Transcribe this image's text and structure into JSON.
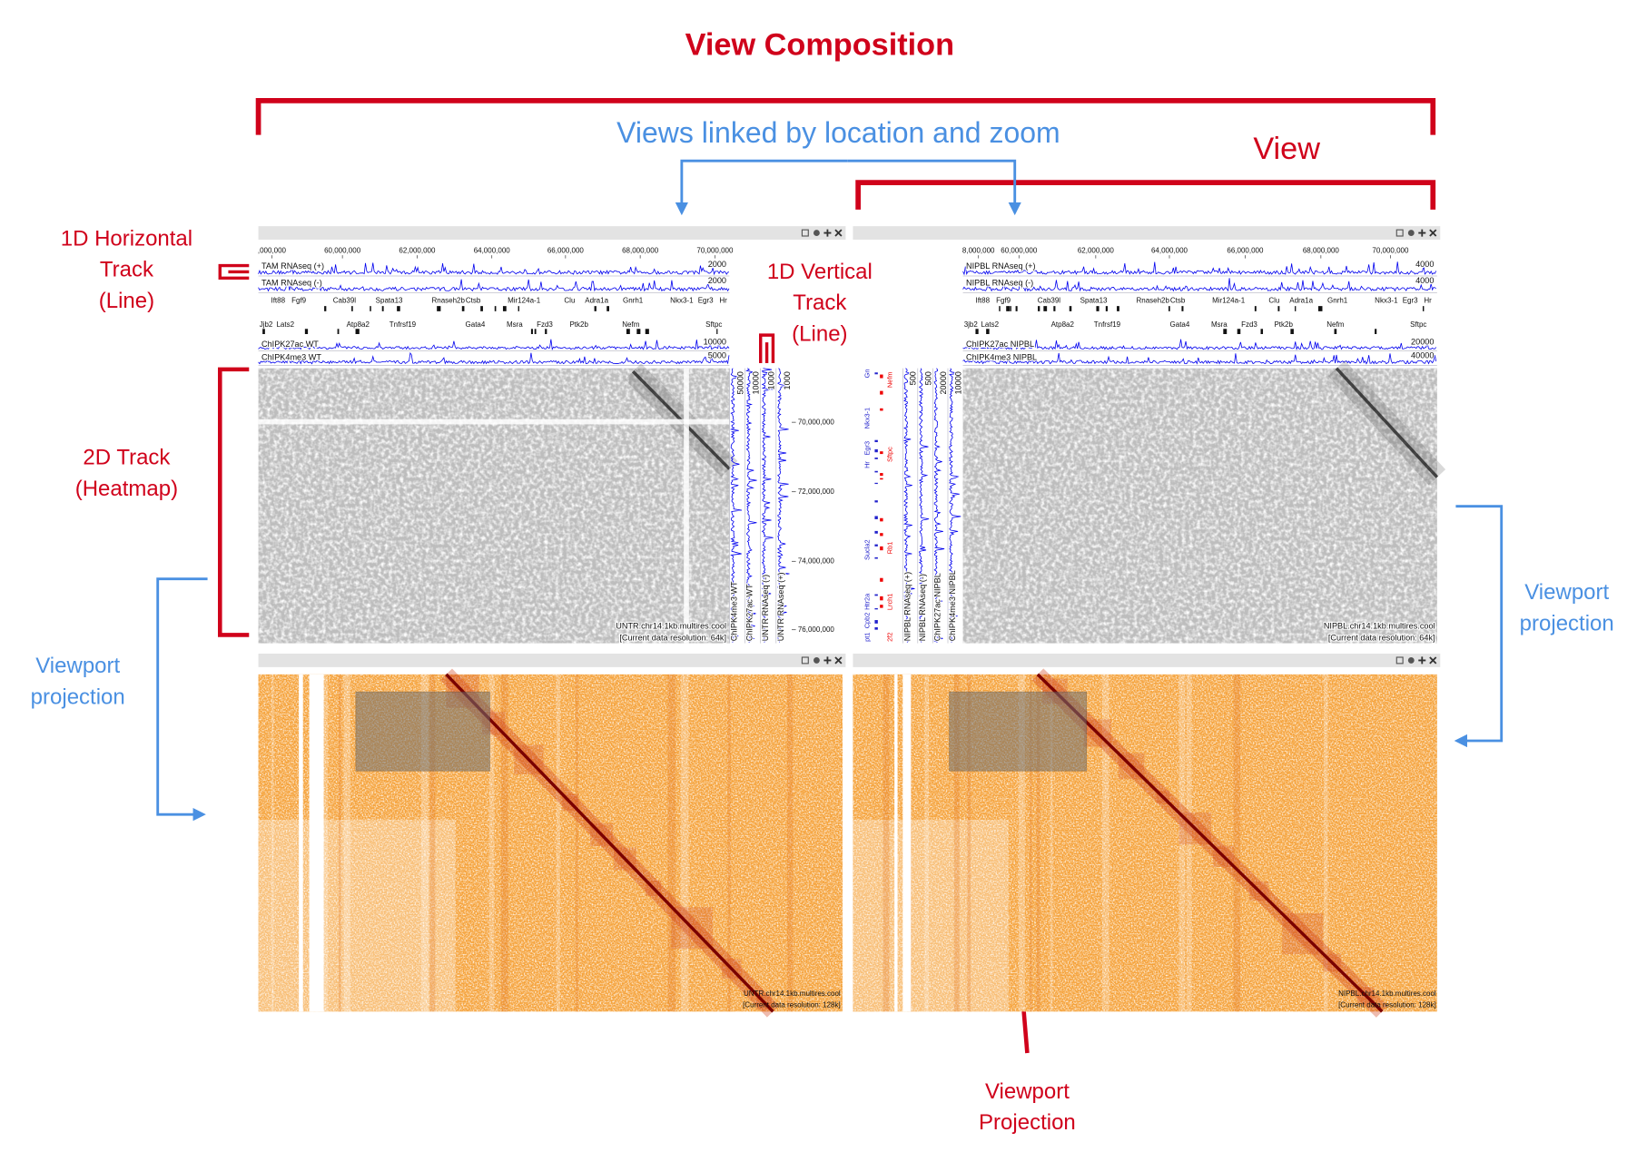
{
  "title": "View Composition",
  "annotations": {
    "linked": "Views linked by location and zoom",
    "view": "View",
    "h_track": [
      "1D Horizontal",
      "Track",
      "(Line)"
    ],
    "v_track": [
      "1D Vertical",
      "Track",
      "(Line)"
    ],
    "track_2d": [
      "2D Track",
      "(Heatmap)"
    ],
    "viewport_left": [
      "Viewport",
      "projection"
    ],
    "viewport_right": [
      "Viewport",
      "projection"
    ],
    "viewport_bottom": [
      "Viewport",
      "Projection"
    ]
  },
  "genes": {
    "top": [
      "Ift88",
      "Fgf9",
      "Cab39l",
      "Spata13",
      "Rnaseh2b",
      "Ctsb",
      "Mir124a-1",
      "Clu",
      "Adra1a",
      "Gnrh1",
      "Nkx3-1",
      "Egr3",
      "Hr"
    ],
    "bottom": [
      "Lats2",
      "Atp8a2",
      "Tnfrsf19",
      "Gata4",
      "Msra",
      "Fzd3",
      "Ptk2b",
      "Nefm",
      "Sftpc"
    ]
  },
  "views": [
    {
      "x_ticks": [
        ",000,000",
        "60,000,000",
        "62,000,000",
        "64,000,000",
        "66,000,000",
        "68,000,000",
        "70,000,000"
      ],
      "gene_cut": "Jjb2",
      "h_tracks": [
        {
          "label": "TAM RNAseq (+)",
          "max": "2000"
        },
        {
          "label": "TAM RNAseq (-)",
          "max": "2000"
        },
        {
          "label": "ChIPK27ac WT",
          "max": "10000"
        },
        {
          "label": "ChIPK4me3 WT",
          "max": "5000"
        }
      ],
      "v_tracks": [
        {
          "label": "ChIPK4me3 WT",
          "max": "50000"
        },
        {
          "label": "ChIPK27ac WT",
          "max": "10000"
        },
        {
          "label": "UNTR RNAseq (-)",
          "max": "1000"
        },
        {
          "label": "UNTR RNAseq (+)",
          "max": "1000"
        }
      ],
      "y_ticks": [
        "70,000,000",
        "72,000,000",
        "74,000,000",
        "76,000,000"
      ],
      "heatmap_label": "UNTR.chr14.1kb.multires.cool",
      "heatmap_resolution": "[Current data resolution: 64k]",
      "overview_label": "UNTR.chr14.1kb.multires.cool",
      "overview_resolution": "[Current data resolution: 128k]"
    },
    {
      "x_ticks": [
        "8,000,000",
        "60,000,000",
        "62,000,000",
        "64,000,000",
        "66,000,000",
        "68,000,000",
        "70,000,000"
      ],
      "gene_cut": "3jb2",
      "h_tracks": [
        {
          "label": "NIPBL RNAseq (+)",
          "max": "4000"
        },
        {
          "label": "NIPBL RNAseq (-)",
          "max": "4000"
        },
        {
          "label": "ChIPK27ac NIPBL",
          "max": "20000"
        },
        {
          "label": "ChIPK4me3 NIPBL",
          "max": "40000"
        }
      ],
      "v_tracks": [
        {
          "label": "NIPBL RNAseq (+)",
          "max": "500"
        },
        {
          "label": "NIPBL RNAseq (-)",
          "max": "500"
        },
        {
          "label": "ChIPK27ac NIPBL",
          "max": "20000"
        },
        {
          "label": "ChIPK4me3 NIPBL",
          "max": "10000"
        }
      ],
      "v_genes": {
        "blue": [
          "Gn",
          "Nkx3-1",
          "Egr3",
          "Hr",
          "Sucla2",
          "Htr2a",
          "Cpb2",
          "pt1"
        ],
        "red": [
          "Nefm",
          "Sftpc",
          "Rb1",
          "Lrch1",
          "2f2"
        ]
      },
      "heatmap_label": "NIPBL.chr14.1kb.multires.cool",
      "heatmap_resolution": "[Current data resolution: 64k]",
      "overview_label": "NIPBL.chr14.1kb.multires.cool",
      "overview_resolution": "[Current data resolution: 128k]"
    }
  ]
}
